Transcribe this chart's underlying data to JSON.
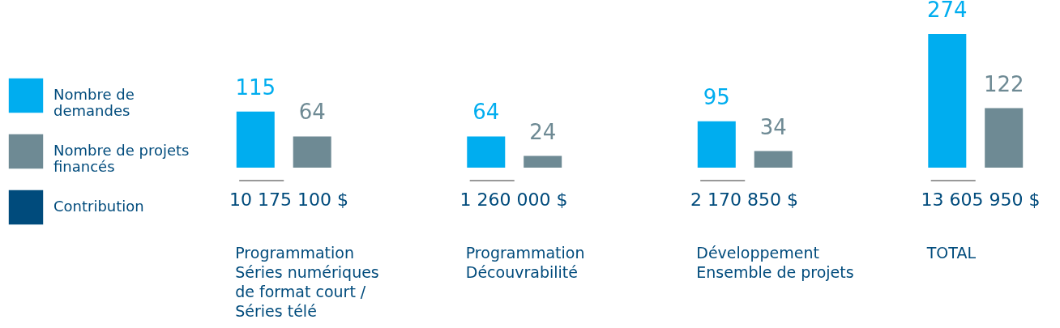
{
  "chart_data": {
    "type": "bar",
    "categories": [
      "Programmation\nSéries numériques\nde format court /\nSéries télé",
      "Programmation\nDécouvrabilité",
      "Développement\nEnsemble de projets",
      "TOTAL"
    ],
    "series": [
      {
        "name": "Nombre de demandes",
        "color": "#00adef",
        "values": [
          115,
          64,
          95,
          274
        ]
      },
      {
        "name": "Nombre de projets financés",
        "color": "#6e8a94",
        "values": [
          64,
          24,
          34,
          122
        ]
      },
      {
        "name": "Contribution",
        "color": "#004b7c",
        "values": [
          null,
          null,
          null,
          null
        ]
      }
    ],
    "annotations": [
      "10 175 100 $",
      "1 260 000 $",
      "2 170 850 $",
      "13 605 950 $"
    ],
    "data_labels": true,
    "legend": "left",
    "grid": false
  }
}
